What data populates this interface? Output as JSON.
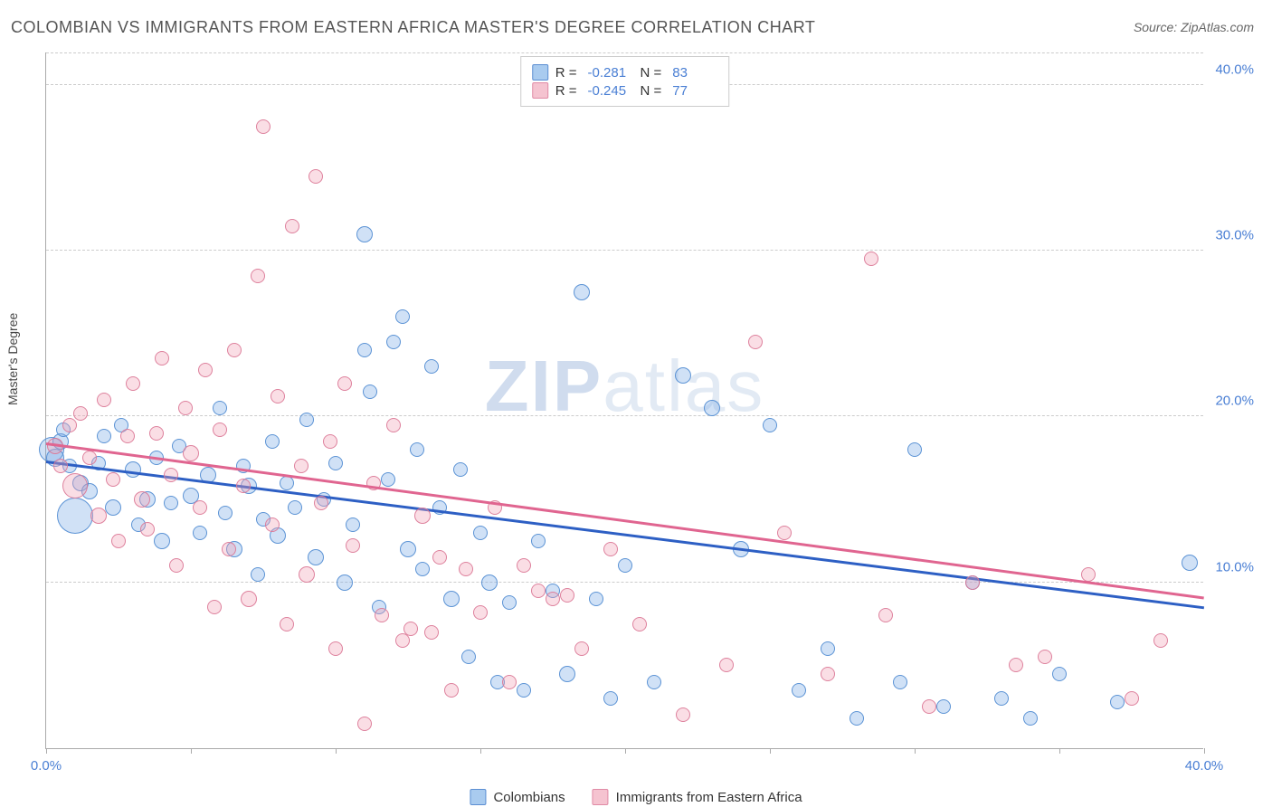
{
  "title": "COLOMBIAN VS IMMIGRANTS FROM EASTERN AFRICA MASTER'S DEGREE CORRELATION CHART",
  "source": "Source: ZipAtlas.com",
  "ylabel": "Master's Degree",
  "watermark": {
    "part1": "ZIP",
    "part2": "atlas"
  },
  "chart": {
    "type": "scatter",
    "xlim": [
      0,
      40
    ],
    "ylim": [
      0,
      42
    ],
    "y_ticks": [
      {
        "value": 10,
        "label": "10.0%"
      },
      {
        "value": 20,
        "label": "20.0%"
      },
      {
        "value": 30,
        "label": "30.0%"
      },
      {
        "value": 40,
        "label": "40.0%"
      }
    ],
    "x_ticks": [
      0,
      5,
      10,
      15,
      20,
      25,
      30,
      35,
      40
    ],
    "x_tick_labels": [
      {
        "value": 0,
        "label": "0.0%"
      },
      {
        "value": 40,
        "label": "40.0%"
      }
    ],
    "gridline_color": "#cccccc",
    "background_color": "#ffffff",
    "series": [
      {
        "name": "Colombians",
        "fill_color": "rgba(120,170,230,0.35)",
        "stroke_color": "rgba(80,140,210,0.9)",
        "swatch_fill": "#a9cbef",
        "swatch_stroke": "#5b8ed2",
        "R": "-0.281",
        "N": "83",
        "trend": {
          "x1": 0,
          "y1": 17.2,
          "x2": 40,
          "y2": 8.4,
          "color": "#2d5fc4",
          "width": 2.5
        },
        "points": [
          {
            "x": 0.2,
            "y": 18.0,
            "r": 14
          },
          {
            "x": 0.3,
            "y": 17.5,
            "r": 10
          },
          {
            "x": 0.5,
            "y": 18.5,
            "r": 9
          },
          {
            "x": 0.8,
            "y": 17.0,
            "r": 8
          },
          {
            "x": 1.0,
            "y": 14.0,
            "r": 20
          },
          {
            "x": 0.6,
            "y": 19.2,
            "r": 8
          },
          {
            "x": 1.2,
            "y": 16.0,
            "r": 9
          },
          {
            "x": 1.5,
            "y": 15.5,
            "r": 9
          },
          {
            "x": 1.8,
            "y": 17.2,
            "r": 8
          },
          {
            "x": 2.0,
            "y": 18.8,
            "r": 8
          },
          {
            "x": 2.3,
            "y": 14.5,
            "r": 9
          },
          {
            "x": 2.6,
            "y": 19.5,
            "r": 8
          },
          {
            "x": 3.0,
            "y": 16.8,
            "r": 9
          },
          {
            "x": 3.2,
            "y": 13.5,
            "r": 8
          },
          {
            "x": 3.5,
            "y": 15.0,
            "r": 9
          },
          {
            "x": 3.8,
            "y": 17.5,
            "r": 8
          },
          {
            "x": 4.0,
            "y": 12.5,
            "r": 9
          },
          {
            "x": 4.3,
            "y": 14.8,
            "r": 8
          },
          {
            "x": 4.6,
            "y": 18.2,
            "r": 8
          },
          {
            "x": 5.0,
            "y": 15.2,
            "r": 9
          },
          {
            "x": 5.3,
            "y": 13.0,
            "r": 8
          },
          {
            "x": 5.6,
            "y": 16.5,
            "r": 9
          },
          {
            "x": 6.0,
            "y": 20.5,
            "r": 8
          },
          {
            "x": 6.2,
            "y": 14.2,
            "r": 8
          },
          {
            "x": 6.5,
            "y": 12.0,
            "r": 9
          },
          {
            "x": 6.8,
            "y": 17.0,
            "r": 8
          },
          {
            "x": 7.0,
            "y": 15.8,
            "r": 9
          },
          {
            "x": 7.3,
            "y": 10.5,
            "r": 8
          },
          {
            "x": 7.5,
            "y": 13.8,
            "r": 8
          },
          {
            "x": 7.8,
            "y": 18.5,
            "r": 8
          },
          {
            "x": 8.0,
            "y": 12.8,
            "r": 9
          },
          {
            "x": 8.3,
            "y": 16.0,
            "r": 8
          },
          {
            "x": 8.6,
            "y": 14.5,
            "r": 8
          },
          {
            "x": 9.0,
            "y": 19.8,
            "r": 8
          },
          {
            "x": 9.3,
            "y": 11.5,
            "r": 9
          },
          {
            "x": 9.6,
            "y": 15.0,
            "r": 8
          },
          {
            "x": 10.0,
            "y": 17.2,
            "r": 8
          },
          {
            "x": 10.3,
            "y": 10.0,
            "r": 9
          },
          {
            "x": 10.6,
            "y": 13.5,
            "r": 8
          },
          {
            "x": 11.0,
            "y": 31.0,
            "r": 9
          },
          {
            "x": 11.2,
            "y": 21.5,
            "r": 8
          },
          {
            "x": 11.5,
            "y": 8.5,
            "r": 8
          },
          {
            "x": 11.8,
            "y": 16.2,
            "r": 8
          },
          {
            "x": 12.0,
            "y": 24.5,
            "r": 8
          },
          {
            "x": 12.3,
            "y": 26.0,
            "r": 8
          },
          {
            "x": 12.5,
            "y": 12.0,
            "r": 9
          },
          {
            "x": 12.8,
            "y": 18.0,
            "r": 8
          },
          {
            "x": 13.0,
            "y": 10.8,
            "r": 8
          },
          {
            "x": 13.3,
            "y": 23.0,
            "r": 8
          },
          {
            "x": 13.6,
            "y": 14.5,
            "r": 8
          },
          {
            "x": 14.0,
            "y": 9.0,
            "r": 9
          },
          {
            "x": 14.3,
            "y": 16.8,
            "r": 8
          },
          {
            "x": 14.6,
            "y": 5.5,
            "r": 8
          },
          {
            "x": 15.0,
            "y": 13.0,
            "r": 8
          },
          {
            "x": 15.3,
            "y": 10.0,
            "r": 9
          },
          {
            "x": 15.6,
            "y": 4.0,
            "r": 8
          },
          {
            "x": 16.0,
            "y": 8.8,
            "r": 8
          },
          {
            "x": 16.5,
            "y": 3.5,
            "r": 8
          },
          {
            "x": 17.0,
            "y": 12.5,
            "r": 8
          },
          {
            "x": 17.5,
            "y": 9.5,
            "r": 8
          },
          {
            "x": 18.0,
            "y": 4.5,
            "r": 9
          },
          {
            "x": 18.5,
            "y": 27.5,
            "r": 9
          },
          {
            "x": 19.0,
            "y": 9.0,
            "r": 8
          },
          {
            "x": 19.5,
            "y": 3.0,
            "r": 8
          },
          {
            "x": 20.0,
            "y": 11.0,
            "r": 8
          },
          {
            "x": 21.0,
            "y": 4.0,
            "r": 8
          },
          {
            "x": 22.0,
            "y": 22.5,
            "r": 9
          },
          {
            "x": 23.0,
            "y": 20.5,
            "r": 9
          },
          {
            "x": 24.0,
            "y": 12.0,
            "r": 9
          },
          {
            "x": 25.0,
            "y": 19.5,
            "r": 8
          },
          {
            "x": 26.0,
            "y": 3.5,
            "r": 8
          },
          {
            "x": 27.0,
            "y": 6.0,
            "r": 8
          },
          {
            "x": 28.0,
            "y": 1.8,
            "r": 8
          },
          {
            "x": 29.5,
            "y": 4.0,
            "r": 8
          },
          {
            "x": 30.0,
            "y": 18.0,
            "r": 8
          },
          {
            "x": 31.0,
            "y": 2.5,
            "r": 8
          },
          {
            "x": 32.0,
            "y": 10.0,
            "r": 8
          },
          {
            "x": 33.0,
            "y": 3.0,
            "r": 8
          },
          {
            "x": 34.0,
            "y": 1.8,
            "r": 8
          },
          {
            "x": 35.0,
            "y": 4.5,
            "r": 8
          },
          {
            "x": 37.0,
            "y": 2.8,
            "r": 8
          },
          {
            "x": 39.5,
            "y": 11.2,
            "r": 9
          },
          {
            "x": 11.0,
            "y": 24.0,
            "r": 8
          }
        ]
      },
      {
        "name": "Immigrants from Eastern Africa",
        "fill_color": "rgba(240,160,180,0.35)",
        "stroke_color": "rgba(220,120,150,0.9)",
        "swatch_fill": "#f5c3d0",
        "swatch_stroke": "#e08aa5",
        "R": "-0.245",
        "N": "77",
        "trend": {
          "x1": 0,
          "y1": 18.3,
          "x2": 40,
          "y2": 9.0,
          "color": "#e06590",
          "width": 2.5
        },
        "points": [
          {
            "x": 0.3,
            "y": 18.2,
            "r": 9
          },
          {
            "x": 0.5,
            "y": 17.0,
            "r": 8
          },
          {
            "x": 0.8,
            "y": 19.5,
            "r": 8
          },
          {
            "x": 1.0,
            "y": 15.8,
            "r": 14
          },
          {
            "x": 1.2,
            "y": 20.2,
            "r": 8
          },
          {
            "x": 1.5,
            "y": 17.5,
            "r": 8
          },
          {
            "x": 1.8,
            "y": 14.0,
            "r": 9
          },
          {
            "x": 2.0,
            "y": 21.0,
            "r": 8
          },
          {
            "x": 2.3,
            "y": 16.2,
            "r": 8
          },
          {
            "x": 2.5,
            "y": 12.5,
            "r": 8
          },
          {
            "x": 2.8,
            "y": 18.8,
            "r": 8
          },
          {
            "x": 3.0,
            "y": 22.0,
            "r": 8
          },
          {
            "x": 3.3,
            "y": 15.0,
            "r": 9
          },
          {
            "x": 3.5,
            "y": 13.2,
            "r": 8
          },
          {
            "x": 3.8,
            "y": 19.0,
            "r": 8
          },
          {
            "x": 4.0,
            "y": 23.5,
            "r": 8
          },
          {
            "x": 4.3,
            "y": 16.5,
            "r": 8
          },
          {
            "x": 4.5,
            "y": 11.0,
            "r": 8
          },
          {
            "x": 4.8,
            "y": 20.5,
            "r": 8
          },
          {
            "x": 5.0,
            "y": 17.8,
            "r": 9
          },
          {
            "x": 5.3,
            "y": 14.5,
            "r": 8
          },
          {
            "x": 5.5,
            "y": 22.8,
            "r": 8
          },
          {
            "x": 5.8,
            "y": 8.5,
            "r": 8
          },
          {
            "x": 6.0,
            "y": 19.2,
            "r": 8
          },
          {
            "x": 6.3,
            "y": 12.0,
            "r": 8
          },
          {
            "x": 6.5,
            "y": 24.0,
            "r": 8
          },
          {
            "x": 6.8,
            "y": 15.8,
            "r": 8
          },
          {
            "x": 7.0,
            "y": 9.0,
            "r": 9
          },
          {
            "x": 7.3,
            "y": 28.5,
            "r": 8
          },
          {
            "x": 7.5,
            "y": 37.5,
            "r": 8
          },
          {
            "x": 7.8,
            "y": 13.5,
            "r": 8
          },
          {
            "x": 8.0,
            "y": 21.2,
            "r": 8
          },
          {
            "x": 8.3,
            "y": 7.5,
            "r": 8
          },
          {
            "x": 8.5,
            "y": 31.5,
            "r": 8
          },
          {
            "x": 8.8,
            "y": 17.0,
            "r": 8
          },
          {
            "x": 9.0,
            "y": 10.5,
            "r": 9
          },
          {
            "x": 9.3,
            "y": 34.5,
            "r": 8
          },
          {
            "x": 9.5,
            "y": 14.8,
            "r": 8
          },
          {
            "x": 9.8,
            "y": 18.5,
            "r": 8
          },
          {
            "x": 10.0,
            "y": 6.0,
            "r": 8
          },
          {
            "x": 10.3,
            "y": 22.0,
            "r": 8
          },
          {
            "x": 10.6,
            "y": 12.2,
            "r": 8
          },
          {
            "x": 11.0,
            "y": 1.5,
            "r": 8
          },
          {
            "x": 11.3,
            "y": 16.0,
            "r": 8
          },
          {
            "x": 11.6,
            "y": 8.0,
            "r": 8
          },
          {
            "x": 12.0,
            "y": 19.5,
            "r": 8
          },
          {
            "x": 12.3,
            "y": 6.5,
            "r": 8
          },
          {
            "x": 12.6,
            "y": 7.2,
            "r": 8
          },
          {
            "x": 13.0,
            "y": 14.0,
            "r": 9
          },
          {
            "x": 13.3,
            "y": 7.0,
            "r": 8
          },
          {
            "x": 13.6,
            "y": 11.5,
            "r": 8
          },
          {
            "x": 14.0,
            "y": 3.5,
            "r": 8
          },
          {
            "x": 14.5,
            "y": 10.8,
            "r": 8
          },
          {
            "x": 15.0,
            "y": 8.2,
            "r": 8
          },
          {
            "x": 15.5,
            "y": 14.5,
            "r": 8
          },
          {
            "x": 16.0,
            "y": 4.0,
            "r": 8
          },
          {
            "x": 16.5,
            "y": 11.0,
            "r": 8
          },
          {
            "x": 17.0,
            "y": 9.5,
            "r": 8
          },
          {
            "x": 17.5,
            "y": 9.0,
            "r": 8
          },
          {
            "x": 18.0,
            "y": 9.2,
            "r": 8
          },
          {
            "x": 18.5,
            "y": 6.0,
            "r": 8
          },
          {
            "x": 19.5,
            "y": 12.0,
            "r": 8
          },
          {
            "x": 20.5,
            "y": 7.5,
            "r": 8
          },
          {
            "x": 22.0,
            "y": 2.0,
            "r": 8
          },
          {
            "x": 23.5,
            "y": 5.0,
            "r": 8
          },
          {
            "x": 24.5,
            "y": 24.5,
            "r": 8
          },
          {
            "x": 25.5,
            "y": 13.0,
            "r": 8
          },
          {
            "x": 27.0,
            "y": 4.5,
            "r": 8
          },
          {
            "x": 28.5,
            "y": 29.5,
            "r": 8
          },
          {
            "x": 29.0,
            "y": 8.0,
            "r": 8
          },
          {
            "x": 30.5,
            "y": 2.5,
            "r": 8
          },
          {
            "x": 32.0,
            "y": 10.0,
            "r": 8
          },
          {
            "x": 33.5,
            "y": 5.0,
            "r": 8
          },
          {
            "x": 34.5,
            "y": 5.5,
            "r": 8
          },
          {
            "x": 36.0,
            "y": 10.5,
            "r": 8
          },
          {
            "x": 37.5,
            "y": 3.0,
            "r": 8
          },
          {
            "x": 38.5,
            "y": 6.5,
            "r": 8
          }
        ]
      }
    ]
  },
  "bottom_legend": [
    {
      "label": "Colombians",
      "series": 0
    },
    {
      "label": "Immigrants from Eastern Africa",
      "series": 1
    }
  ]
}
